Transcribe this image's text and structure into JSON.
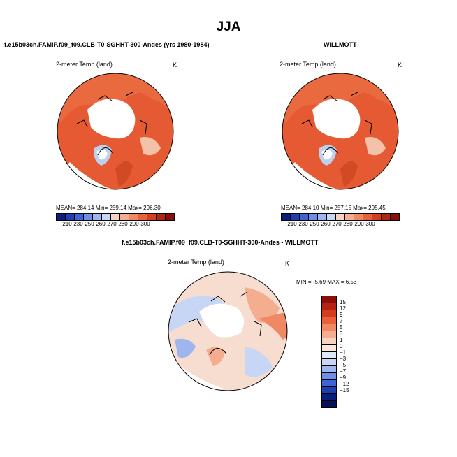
{
  "figure": {
    "title": "JJA",
    "variable": "2-meter Temp (land)",
    "units": "K"
  },
  "panels": {
    "model": {
      "title": "f.e15b03ch.FAMIP.f09_f09.CLB-T0-SGHHT-300-Andes (yrs 1980-1984)",
      "stats": "MEAN= 284.14  Min= 259.14  Max= 296.30"
    },
    "obs": {
      "title": "WILLMOTT",
      "stats": "MEAN= 284.10  Min= 257.15  Max= 295.45"
    },
    "diff": {
      "title": "f.e15b03ch.FAMIP.f09_f09.CLB-T0-SGHHT-300-Andes - WILLMOTT",
      "stats": "MIN =   -5.69 MAX =    6.53"
    }
  },
  "colorbar_abs": {
    "labels": [
      "210",
      "230",
      "250",
      "260",
      "270",
      "280",
      "290",
      "300"
    ],
    "colors": [
      "#0b1f7a",
      "#1d3fb4",
      "#3c64d8",
      "#6d8fe6",
      "#9db6f0",
      "#c8d6f6",
      "#f6d2c0",
      "#f4ad8e",
      "#f08863",
      "#e8603c",
      "#d63c1e",
      "#b52412",
      "#8a0f08"
    ]
  },
  "colorbar_diff": {
    "labels": [
      "15",
      "12",
      "9",
      "7",
      "5",
      "3",
      "1",
      "0",
      "−1",
      "−3",
      "−5",
      "−7",
      "−9",
      "−12",
      "−15"
    ],
    "colors": [
      "#8a0f08",
      "#b52412",
      "#d63c1e",
      "#e8603c",
      "#f08863",
      "#f4ad8e",
      "#f6d2c0",
      "#fbe6da",
      "#dfe8fa",
      "#c8d6f6",
      "#9db6f0",
      "#6d8fe6",
      "#3c64d8",
      "#1d3fb4",
      "#0b1f7a",
      "#06105a"
    ]
  }
}
